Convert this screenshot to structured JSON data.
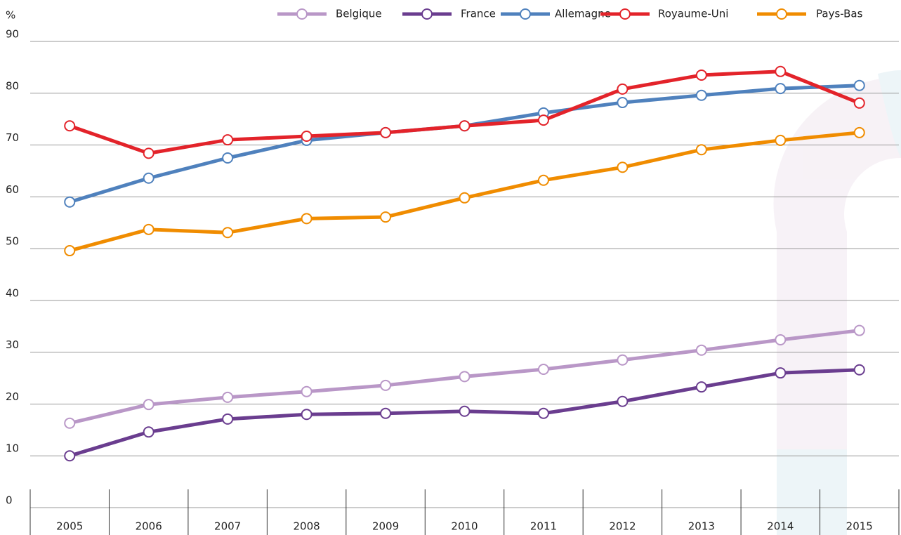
{
  "chart_data": {
    "type": "line",
    "ylabel": "%",
    "categories": [
      "2005",
      "2006",
      "2007",
      "2008",
      "2009",
      "2010",
      "2011",
      "2012",
      "2013",
      "2014",
      "2015"
    ],
    "ylim": [
      0,
      90
    ],
    "yticks": [
      0,
      10,
      20,
      30,
      40,
      50,
      60,
      70,
      80,
      90
    ],
    "grid": true,
    "legend": "top-right",
    "series": [
      {
        "name": "Belgique",
        "color": "#b997c7",
        "values": [
          16.3,
          19.9,
          21.3,
          22.4,
          23.6,
          25.3,
          26.7,
          28.5,
          30.4,
          32.4,
          34.2
        ]
      },
      {
        "name": "France",
        "color": "#6a3d8f",
        "values": [
          10.0,
          14.6,
          17.1,
          18.0,
          18.2,
          18.6,
          18.2,
          20.5,
          23.3,
          26.0,
          26.6
        ]
      },
      {
        "name": "Allemagne",
        "color": "#4f81bd",
        "values": [
          59.0,
          63.6,
          67.5,
          70.9,
          72.4,
          73.7,
          76.2,
          78.2,
          79.6,
          80.9,
          81.5
        ]
      },
      {
        "name": "Royaume-Uni",
        "color": "#e3232a",
        "values": [
          73.7,
          68.4,
          71.0,
          71.7,
          72.4,
          73.7,
          74.8,
          80.8,
          83.5,
          84.2,
          78.1
        ]
      },
      {
        "name": "Pays-Bas",
        "color": "#f08c00",
        "values": [
          49.6,
          53.7,
          53.1,
          55.8,
          56.1,
          59.8,
          63.2,
          65.7,
          69.1,
          70.9,
          72.4
        ]
      }
    ]
  }
}
